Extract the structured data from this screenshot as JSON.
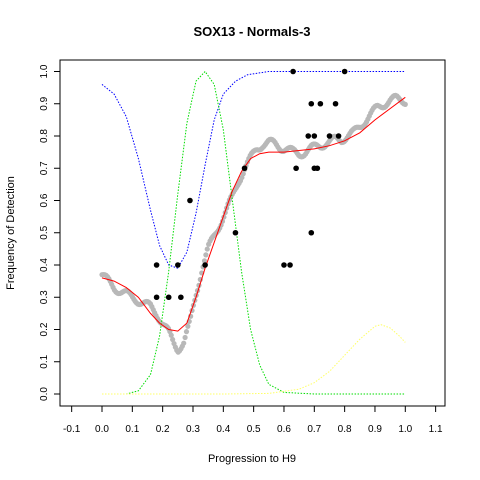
{
  "chart_data": {
    "type": "scatter",
    "title": "SOX13 - Normals-3",
    "xlabel": "Progression to H9",
    "ylabel": "Frequency of Detection",
    "xlim": [
      -0.13,
      1.13
    ],
    "ylim": [
      -0.04,
      1.04
    ],
    "x_ticks": [
      "-0.1",
      "0.0",
      "0.1",
      "0.2",
      "0.3",
      "0.4",
      "0.5",
      "0.6",
      "0.7",
      "0.8",
      "0.9",
      "1.0",
      "1.1"
    ],
    "y_ticks": [
      "0.0",
      "0.1",
      "0.2",
      "0.3",
      "0.4",
      "0.5",
      "0.6",
      "0.7",
      "0.8",
      "0.9",
      "1.0"
    ],
    "grid": false,
    "colors": {
      "gray_points": "#b8b8b8",
      "black_points": "#000000",
      "fit_line": "#ff0000",
      "blue_curve": "#0000ff",
      "green_curve": "#00dd00",
      "yellow_curve": "#ffff66"
    },
    "series": [
      {
        "kind": "points",
        "color": "gray",
        "anchors": [
          [
            0.0,
            0.37
          ],
          [
            0.02,
            0.35
          ],
          [
            0.04,
            0.33
          ],
          [
            0.06,
            0.32
          ],
          [
            0.08,
            0.31
          ],
          [
            0.1,
            0.3
          ],
          [
            0.12,
            0.29
          ],
          [
            0.14,
            0.28
          ],
          [
            0.16,
            0.27
          ],
          [
            0.18,
            0.25
          ],
          [
            0.2,
            0.22
          ],
          [
            0.22,
            0.19
          ],
          [
            0.235,
            0.16
          ],
          [
            0.25,
            0.14
          ],
          [
            0.27,
            0.16
          ],
          [
            0.29,
            0.22
          ],
          [
            0.31,
            0.31
          ],
          [
            0.33,
            0.39
          ],
          [
            0.35,
            0.45
          ],
          [
            0.37,
            0.49
          ],
          [
            0.39,
            0.53
          ],
          [
            0.41,
            0.57
          ],
          [
            0.43,
            0.61
          ],
          [
            0.45,
            0.66
          ],
          [
            0.47,
            0.7
          ],
          [
            0.49,
            0.73
          ],
          [
            0.51,
            0.76
          ],
          [
            0.53,
            0.775
          ],
          [
            0.55,
            0.78
          ],
          [
            0.57,
            0.775
          ],
          [
            0.59,
            0.765
          ],
          [
            0.61,
            0.76
          ],
          [
            0.63,
            0.75
          ],
          [
            0.65,
            0.745
          ],
          [
            0.67,
            0.75
          ],
          [
            0.69,
            0.76
          ],
          [
            0.71,
            0.77
          ],
          [
            0.73,
            0.775
          ],
          [
            0.75,
            0.78
          ],
          [
            0.77,
            0.79
          ],
          [
            0.79,
            0.79
          ],
          [
            0.81,
            0.8
          ],
          [
            0.83,
            0.81
          ],
          [
            0.85,
            0.83
          ],
          [
            0.87,
            0.85
          ],
          [
            0.89,
            0.87
          ],
          [
            0.91,
            0.89
          ],
          [
            0.93,
            0.9
          ],
          [
            0.95,
            0.91
          ],
          [
            0.97,
            0.915
          ],
          [
            1.0,
            0.91
          ]
        ]
      },
      {
        "kind": "points",
        "color": "black",
        "points": [
          [
            0.18,
            0.4
          ],
          [
            0.25,
            0.4
          ],
          [
            0.34,
            0.4
          ],
          [
            0.18,
            0.3
          ],
          [
            0.22,
            0.3
          ],
          [
            0.26,
            0.3
          ],
          [
            0.29,
            0.6
          ],
          [
            0.44,
            0.5
          ],
          [
            0.47,
            0.7
          ],
          [
            0.6,
            0.4
          ],
          [
            0.62,
            0.4
          ],
          [
            0.63,
            1.0
          ],
          [
            0.64,
            0.7
          ],
          [
            0.68,
            0.8
          ],
          [
            0.7,
            0.8
          ],
          [
            0.69,
            0.9
          ],
          [
            0.72,
            0.9
          ],
          [
            0.7,
            0.7
          ],
          [
            0.71,
            0.7
          ],
          [
            0.69,
            0.5
          ],
          [
            0.75,
            0.8
          ],
          [
            0.77,
            0.9
          ],
          [
            0.78,
            0.8
          ],
          [
            0.8,
            1.0
          ]
        ]
      },
      {
        "kind": "line",
        "color": "red",
        "points": [
          [
            0.0,
            0.36
          ],
          [
            0.04,
            0.35
          ],
          [
            0.08,
            0.33
          ],
          [
            0.12,
            0.3
          ],
          [
            0.16,
            0.25
          ],
          [
            0.19,
            0.22
          ],
          [
            0.22,
            0.2
          ],
          [
            0.25,
            0.195
          ],
          [
            0.28,
            0.22
          ],
          [
            0.31,
            0.3
          ],
          [
            0.34,
            0.39
          ],
          [
            0.37,
            0.47
          ],
          [
            0.4,
            0.55
          ],
          [
            0.43,
            0.63
          ],
          [
            0.46,
            0.69
          ],
          [
            0.49,
            0.73
          ],
          [
            0.52,
            0.745
          ],
          [
            0.55,
            0.75
          ],
          [
            0.6,
            0.75
          ],
          [
            0.65,
            0.755
          ],
          [
            0.7,
            0.76
          ],
          [
            0.75,
            0.77
          ],
          [
            0.8,
            0.785
          ],
          [
            0.85,
            0.81
          ],
          [
            0.9,
            0.85
          ],
          [
            0.95,
            0.885
          ],
          [
            1.0,
            0.92
          ]
        ]
      },
      {
        "kind": "dotted-line",
        "color": "blue",
        "points": [
          [
            0.0,
            0.96
          ],
          [
            0.04,
            0.93
          ],
          [
            0.08,
            0.86
          ],
          [
            0.12,
            0.73
          ],
          [
            0.16,
            0.57
          ],
          [
            0.19,
            0.46
          ],
          [
            0.22,
            0.4
          ],
          [
            0.25,
            0.39
          ],
          [
            0.28,
            0.44
          ],
          [
            0.31,
            0.56
          ],
          [
            0.34,
            0.71
          ],
          [
            0.37,
            0.85
          ],
          [
            0.4,
            0.93
          ],
          [
            0.44,
            0.97
          ],
          [
            0.48,
            0.99
          ],
          [
            0.55,
            1.0
          ],
          [
            0.65,
            1.0
          ],
          [
            0.8,
            1.0
          ],
          [
            1.0,
            1.0
          ]
        ]
      },
      {
        "kind": "dotted-line",
        "color": "green",
        "points": [
          [
            0.0,
            0.0
          ],
          [
            0.08,
            0.0
          ],
          [
            0.12,
            0.01
          ],
          [
            0.16,
            0.06
          ],
          [
            0.19,
            0.18
          ],
          [
            0.22,
            0.38
          ],
          [
            0.25,
            0.62
          ],
          [
            0.28,
            0.84
          ],
          [
            0.31,
            0.97
          ],
          [
            0.34,
            1.0
          ],
          [
            0.37,
            0.96
          ],
          [
            0.4,
            0.82
          ],
          [
            0.43,
            0.6
          ],
          [
            0.46,
            0.38
          ],
          [
            0.49,
            0.2
          ],
          [
            0.52,
            0.09
          ],
          [
            0.55,
            0.03
          ],
          [
            0.6,
            0.005
          ],
          [
            0.7,
            0.0
          ],
          [
            1.0,
            0.0
          ]
        ]
      },
      {
        "kind": "dotted-line",
        "color": "yellow",
        "points": [
          [
            0.0,
            0.0
          ],
          [
            0.4,
            0.0
          ],
          [
            0.55,
            0.002
          ],
          [
            0.65,
            0.015
          ],
          [
            0.7,
            0.035
          ],
          [
            0.75,
            0.07
          ],
          [
            0.8,
            0.12
          ],
          [
            0.85,
            0.17
          ],
          [
            0.9,
            0.21
          ],
          [
            0.92,
            0.215
          ],
          [
            0.95,
            0.205
          ],
          [
            0.98,
            0.18
          ],
          [
            1.0,
            0.16
          ]
        ]
      }
    ]
  }
}
